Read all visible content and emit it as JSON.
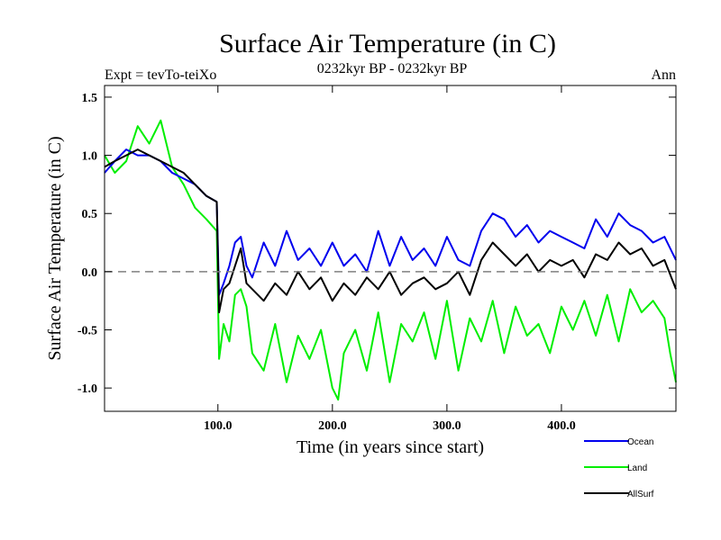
{
  "chart_data": {
    "type": "line",
    "title": "Surface Air Temperature (in C)",
    "subtitle": "0232kyr BP - 0232kyr BP",
    "left_label": "Expt = tevTo-teiXo",
    "right_label": "Ann",
    "xlabel": "Time (in years since start)",
    "ylabel": "Surface Air Temperature (in C)",
    "xlim": [
      1,
      500
    ],
    "ylim": [
      -1.2,
      1.6
    ],
    "xticks": [
      100,
      200,
      300,
      400
    ],
    "xtick_labels": [
      "100.0",
      "200.0",
      "300.0",
      "400.0"
    ],
    "yticks": [
      1.5,
      1.0,
      0.5,
      0.0,
      -0.5,
      -1.0
    ],
    "ytick_labels": [
      "1.5",
      "1.0",
      "0.5",
      "0.0",
      "-0.5",
      "-1.0"
    ],
    "reference_line": {
      "y": 0,
      "style": "dashed",
      "color": "#808080"
    },
    "grid": false,
    "legend_position": "bottom-right, below plot",
    "series": [
      {
        "name": "Land",
        "color": "#00ee00",
        "x": [
          1,
          10,
          20,
          30,
          40,
          50,
          60,
          70,
          80,
          90,
          99,
          101,
          105,
          110,
          115,
          120,
          125,
          130,
          140,
          150,
          160,
          170,
          180,
          190,
          200,
          205,
          210,
          220,
          230,
          240,
          250,
          260,
          270,
          280,
          290,
          300,
          310,
          320,
          330,
          340,
          350,
          360,
          370,
          380,
          390,
          400,
          410,
          420,
          430,
          440,
          450,
          460,
          470,
          480,
          490,
          495,
          500
        ],
        "y": [
          1.0,
          0.85,
          0.95,
          1.25,
          1.1,
          1.3,
          0.9,
          0.75,
          0.55,
          0.45,
          0.35,
          -0.75,
          -0.45,
          -0.6,
          -0.2,
          -0.15,
          -0.3,
          -0.7,
          -0.85,
          -0.45,
          -0.95,
          -0.55,
          -0.75,
          -0.5,
          -1.0,
          -1.1,
          -0.7,
          -0.5,
          -0.85,
          -0.35,
          -0.95,
          -0.45,
          -0.6,
          -0.35,
          -0.75,
          -0.25,
          -0.85,
          -0.4,
          -0.6,
          -0.25,
          -0.7,
          -0.3,
          -0.55,
          -0.45,
          -0.7,
          -0.3,
          -0.5,
          -0.25,
          -0.55,
          -0.2,
          -0.6,
          -0.15,
          -0.35,
          -0.25,
          -0.4,
          -0.7,
          -0.95
        ]
      },
      {
        "name": "Ocean",
        "color": "#0000ee",
        "x": [
          1,
          10,
          20,
          30,
          40,
          50,
          60,
          70,
          80,
          90,
          99,
          101,
          105,
          110,
          115,
          120,
          125,
          130,
          140,
          150,
          160,
          170,
          180,
          190,
          200,
          210,
          220,
          230,
          240,
          250,
          260,
          270,
          280,
          290,
          300,
          310,
          320,
          330,
          340,
          350,
          360,
          370,
          380,
          390,
          400,
          410,
          420,
          430,
          440,
          450,
          460,
          470,
          480,
          490,
          500
        ],
        "y": [
          0.85,
          0.95,
          1.05,
          1.0,
          1.0,
          0.95,
          0.85,
          0.8,
          0.75,
          0.65,
          0.6,
          -0.2,
          -0.1,
          0.05,
          0.25,
          0.3,
          0.05,
          -0.05,
          0.25,
          0.05,
          0.35,
          0.1,
          0.2,
          0.05,
          0.25,
          0.05,
          0.15,
          0.0,
          0.35,
          0.05,
          0.3,
          0.1,
          0.2,
          0.05,
          0.3,
          0.1,
          0.05,
          0.35,
          0.5,
          0.45,
          0.3,
          0.4,
          0.25,
          0.35,
          0.3,
          0.25,
          0.2,
          0.45,
          0.3,
          0.5,
          0.4,
          0.35,
          0.25,
          0.3,
          0.1
        ]
      },
      {
        "name": "AllSurf",
        "color": "#000000",
        "x": [
          1,
          10,
          20,
          30,
          40,
          50,
          60,
          70,
          80,
          90,
          99,
          101,
          105,
          110,
          115,
          120,
          125,
          130,
          140,
          150,
          160,
          170,
          180,
          190,
          200,
          210,
          220,
          230,
          240,
          250,
          260,
          270,
          280,
          290,
          300,
          310,
          320,
          330,
          340,
          350,
          360,
          370,
          380,
          390,
          400,
          410,
          420,
          430,
          440,
          450,
          460,
          470,
          480,
          490,
          500
        ],
        "y": [
          0.9,
          0.95,
          1.0,
          1.05,
          1.0,
          0.95,
          0.9,
          0.85,
          0.75,
          0.65,
          0.6,
          -0.35,
          -0.15,
          -0.1,
          0.05,
          0.2,
          -0.1,
          -0.15,
          -0.25,
          -0.1,
          -0.2,
          0.0,
          -0.15,
          -0.05,
          -0.25,
          -0.1,
          -0.2,
          -0.05,
          -0.15,
          0.0,
          -0.2,
          -0.1,
          -0.05,
          -0.15,
          -0.1,
          0.0,
          -0.2,
          0.1,
          0.25,
          0.15,
          0.05,
          0.15,
          0.0,
          0.1,
          0.05,
          0.1,
          -0.05,
          0.15,
          0.1,
          0.25,
          0.15,
          0.2,
          0.05,
          0.1,
          -0.15
        ]
      }
    ]
  }
}
